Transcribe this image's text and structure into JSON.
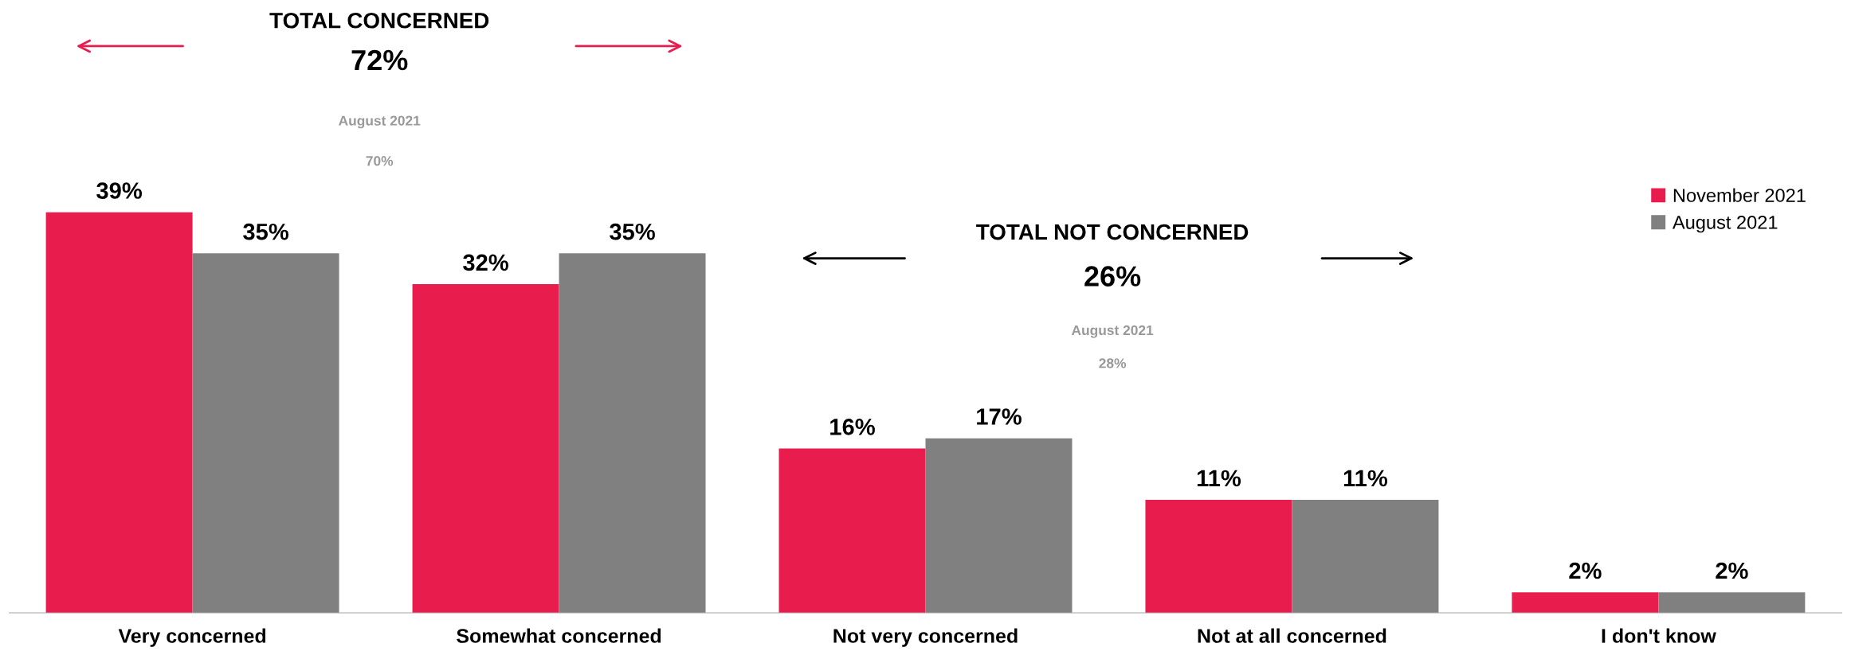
{
  "chart_data": {
    "type": "bar",
    "categories": [
      "Very concerned",
      "Somewhat concerned",
      "Not very concerned",
      "Not at all concerned",
      "I don't know"
    ],
    "series": [
      {
        "name": "November 2021",
        "color": "#e81c4d",
        "values": [
          39,
          32,
          16,
          11,
          2
        ],
        "value_labels": [
          "39%",
          "32%",
          "16%",
          "11%",
          "2%"
        ]
      },
      {
        "name": "August 2021",
        "color": "#808080",
        "values": [
          35,
          35,
          17,
          11,
          2
        ],
        "value_labels": [
          "35%",
          "35%",
          "17%",
          "11%",
          "2%"
        ]
      }
    ],
    "legend": "top right",
    "grid": false,
    "annotations": [
      "TOTAL CONCERNED",
      "72%",
      "August 2021",
      "70%",
      "TOTAL NOT CONCERNED",
      "26%",
      "August 2021",
      "28%"
    ]
  }
}
